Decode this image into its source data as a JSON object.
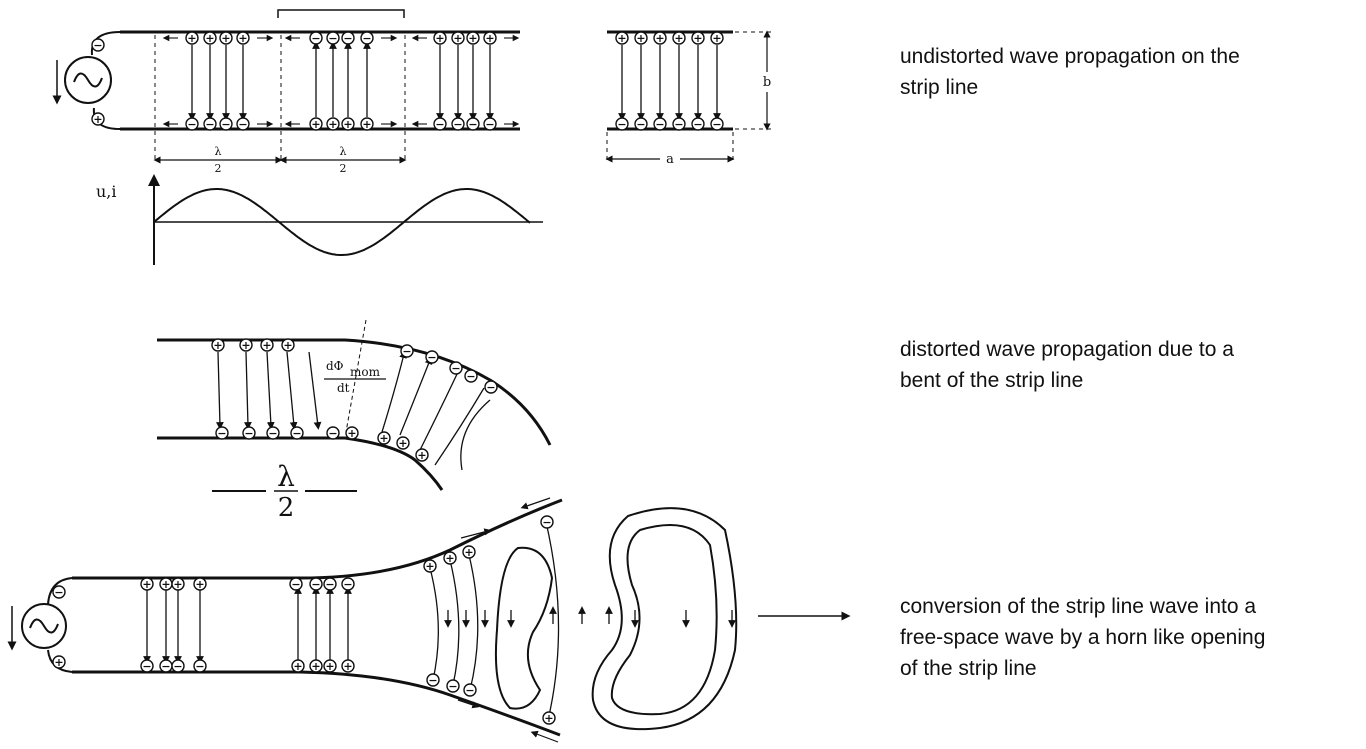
{
  "captions": {
    "top": [
      "undistorted wave propagation on the",
      "strip line"
    ],
    "middle": [
      "distorted wave propagation due to a",
      "bent of the strip line"
    ],
    "bottom": [
      "conversion of the strip line wave into a",
      "free-space wave by a horn like opening",
      "of the strip line"
    ]
  },
  "labels": {
    "half_wave_num": "λ",
    "half_wave_den": "2",
    "width": "a",
    "height": "b",
    "axis": "u,i",
    "flux_top": "dΦ",
    "flux_sub": "mom",
    "flux_den": "dt",
    "big_lambda": "λ",
    "big_two": "2"
  },
  "signs": {
    "plus": "+",
    "minus": "−"
  }
}
